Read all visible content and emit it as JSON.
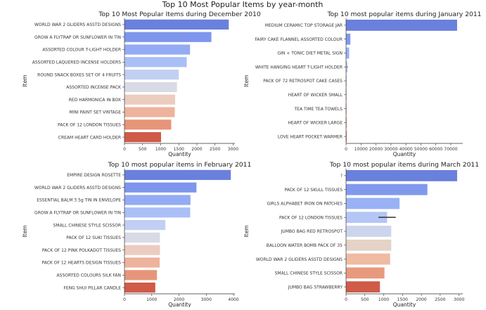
{
  "suptitle": "Top 10 Most Popular Items by year-month",
  "chart_data": [
    {
      "type": "bar",
      "orientation": "horizontal",
      "title": "Top 10 Most Popular Items during December 2010",
      "xlabel": "Quantity",
      "ylabel": "Item",
      "xlim": [
        0,
        3050
      ],
      "xticks": [
        0,
        500,
        1000,
        1500,
        2000,
        2500,
        3000
      ],
      "categories": [
        "WORLD WAR 2 GLIDERS ASSTD DESIGNS",
        "GROW A FLYTRAP OR SUNFLOWER IN TIN",
        "ASSORTED COLOUR T-LIGHT HOLDER",
        "ASSORTED LAQUERED INCENSE HOLDERS",
        "ROUND SNACK BOXES SET OF 4 FRUITS",
        "ASSORTED INCENSE PACK",
        "RED  HARMONICA IN BOX",
        "MINI PAINT SET VINTAGE",
        "PACK OF 12 LONDON TISSUES",
        "CREAM HEART CARD HOLDER"
      ],
      "values": [
        2880,
        2400,
        1810,
        1720,
        1500,
        1450,
        1400,
        1390,
        1290,
        1010
      ],
      "errors": [
        0,
        0,
        0,
        0,
        0,
        0,
        0,
        0,
        0,
        0
      ]
    },
    {
      "type": "bar",
      "orientation": "horizontal",
      "title": "Top 10 most popular items during January 2011",
      "xlabel": "Quantity",
      "ylabel": "Item",
      "xlim": [
        0,
        78000
      ],
      "xticks": [
        0,
        10000,
        20000,
        30000,
        40000,
        50000,
        60000,
        70000
      ],
      "categories": [
        "MEDIUM CERAMIC TOP STORAGE JAR",
        "FAIRY CAKE FLANNEL ASSORTED COLOUR",
        "GIN + TONIC DIET METAL SIGN",
        "WHITE HANGING HEART T-LIGHT HOLDER",
        "PACK OF 72 RETROSPOT CAKE CASES",
        "HEART OF WICKER SMALL",
        "TEA TIME TEA TOWELS",
        "HEART OF WICKER LARGE",
        "LOVE HEART POCKET WARMER"
      ],
      "values": [
        74200,
        2900,
        2100,
        900,
        600,
        500,
        450,
        420,
        400
      ],
      "errors": [
        0,
        0,
        0,
        250,
        0,
        0,
        0,
        0,
        0
      ]
    },
    {
      "type": "bar",
      "orientation": "horizontal",
      "title": "Top 10 most popular items in February 2011",
      "xlabel": "Quantity",
      "ylabel": "Item",
      "xlim": [
        0,
        4050
      ],
      "xticks": [
        0,
        1000,
        2000,
        3000,
        4000
      ],
      "categories": [
        "EMPIRE DESIGN ROSETTE",
        "WORLD WAR 2 GLIDERS ASSTD DESIGNS",
        "ESSENTIAL BALM 3.5g TIN IN ENVELOPE",
        "GROW A FLYTRAP OR SUNFLOWER IN TIN",
        "SMALL CHINESE STYLE SCISSOR",
        "PACK OF 12 SUKI TISSUES",
        "PACK OF 12 PINK POLKADOT TISSUES",
        "PACK OF 12 HEARTS DESIGN TISSUES",
        "ASSORTED COLOURS SILK FAN",
        "FENG SHUI PILLAR CANDLE"
      ],
      "values": [
        3900,
        2640,
        2420,
        2410,
        1500,
        1300,
        1300,
        1290,
        1190,
        1130
      ],
      "errors": [
        0,
        0,
        0,
        0,
        0,
        0,
        0,
        0,
        0,
        0
      ]
    },
    {
      "type": "bar",
      "orientation": "horizontal",
      "title": "Top 10 most popular items during March 2011",
      "xlabel": "Quantity",
      "ylabel": "Item",
      "xlim": [
        0,
        3100
      ],
      "xticks": [
        0,
        500,
        1000,
        1500,
        2000,
        2500,
        3000
      ],
      "categories": [
        "?",
        "PACK OF 12 SKULL TISSUES",
        "GIRLS ALPHABET IRON ON PATCHES",
        "PACK OF 12 LONDON TISSUES",
        "JUMBO BAG RED RETROSPOT",
        "BALLOON WATER BOMB PACK OF 35",
        "WORLD WAR 2 GLIDERS ASSTD DESIGNS",
        "SMALL CHINESE STYLE SCISSOR",
        "JUMBO BAG STRAWBERRY"
      ],
      "values": [
        2950,
        2160,
        1420,
        1090,
        1200,
        1200,
        1170,
        1020,
        900
      ],
      "errors": [
        0,
        0,
        0,
        230,
        0,
        0,
        0,
        0,
        0
      ]
    }
  ]
}
